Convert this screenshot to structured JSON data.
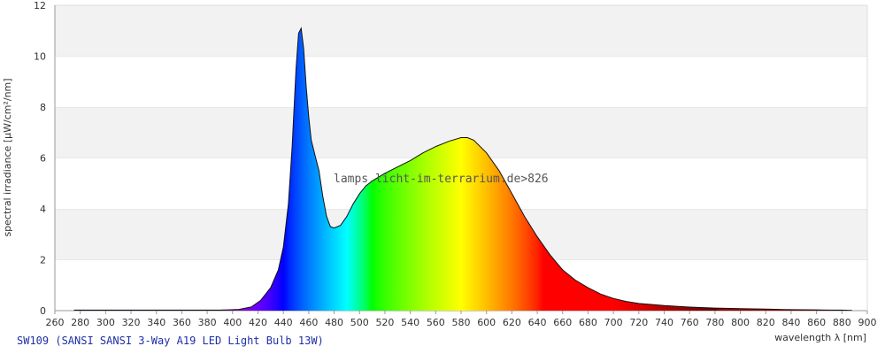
{
  "chart_data": {
    "type": "area",
    "title": "",
    "caption": "SW109 (SANSI SANSI 3-Way A19 LED Light Bulb 13W)",
    "watermark": "lamps.licht-im-terrarium.de>826",
    "xlabel": "wavelength λ [nm]",
    "ylabel": "spectral irradiance [µW/cm²/nm]",
    "xlim": [
      260,
      900
    ],
    "ylim": [
      0,
      12
    ],
    "x_ticks": [
      260,
      280,
      300,
      320,
      340,
      360,
      380,
      400,
      420,
      440,
      460,
      480,
      500,
      520,
      540,
      560,
      580,
      600,
      620,
      640,
      660,
      680,
      700,
      720,
      740,
      760,
      780,
      800,
      820,
      840,
      860,
      880,
      900
    ],
    "y_ticks": [
      0,
      2,
      4,
      6,
      8,
      10,
      12
    ],
    "grid": "horizontal bands",
    "fill": "wavelength-colored spectrum",
    "series": [
      {
        "x": [
          275,
          300,
          350,
          390,
          405,
          415,
          422,
          430,
          436,
          440,
          444,
          447,
          450,
          452,
          454,
          456,
          458,
          460,
          462,
          465,
          468,
          471,
          474,
          477,
          480,
          485,
          490,
          495,
          500,
          505,
          510,
          520,
          530,
          540,
          550,
          560,
          570,
          580,
          585,
          590,
          600,
          610,
          620,
          630,
          640,
          650,
          660,
          670,
          680,
          690,
          700,
          710,
          720,
          740,
          760,
          780,
          800,
          820,
          840,
          860,
          870,
          880,
          888
        ],
        "y": [
          0.02,
          0.02,
          0.02,
          0.02,
          0.05,
          0.15,
          0.4,
          0.9,
          1.6,
          2.5,
          4.2,
          6.5,
          9.5,
          10.9,
          11.1,
          10.3,
          8.8,
          7.6,
          6.7,
          6.1,
          5.5,
          4.5,
          3.7,
          3.3,
          3.25,
          3.35,
          3.7,
          4.2,
          4.6,
          4.9,
          5.1,
          5.4,
          5.65,
          5.9,
          6.2,
          6.45,
          6.65,
          6.8,
          6.8,
          6.7,
          6.2,
          5.5,
          4.6,
          3.7,
          2.9,
          2.2,
          1.6,
          1.2,
          0.9,
          0.65,
          0.48,
          0.36,
          0.28,
          0.2,
          0.14,
          0.1,
          0.08,
          0.06,
          0.04,
          0.03,
          0.02,
          0.02,
          0.01
        ]
      }
    ]
  }
}
